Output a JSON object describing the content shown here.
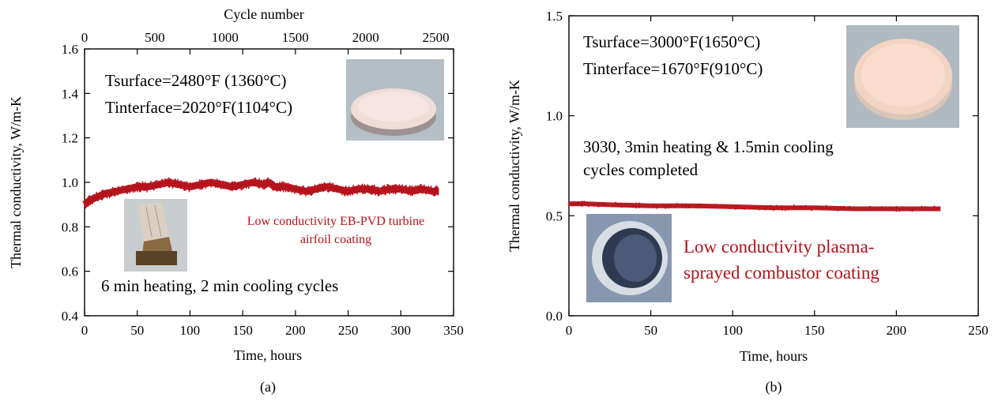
{
  "chart_data": [
    {
      "type": "line",
      "panel_label": "(a)",
      "xlabel": "Time, hours",
      "ylabel": "Thermal conductivity,  W/m-K",
      "xlim": [
        0,
        350
      ],
      "ylim": [
        0.4,
        1.6
      ],
      "x_ticks": [
        "0",
        "50",
        "100",
        "150",
        "200",
        "250",
        "300",
        "350"
      ],
      "y_ticks": [
        "0.4",
        "0.6",
        "0.8",
        "1.0",
        "1.2",
        "1.4",
        "1.6"
      ],
      "top_axis": {
        "label": "Cycle number",
        "ticks": [
          "0",
          "500",
          "1000",
          "1500",
          "2000",
          "2500"
        ],
        "tick_values": [
          0,
          500,
          1000,
          1500,
          2000,
          2500
        ],
        "hours_per_cycle": 0.1333
      },
      "series": [
        {
          "name": "Low conductivity EB-PVD turbine airfoil coating",
          "color": "#b5121b",
          "x": [
            0,
            5,
            10,
            20,
            30,
            40,
            50,
            60,
            70,
            80,
            90,
            100,
            110,
            120,
            130,
            140,
            150,
            160,
            170,
            175,
            180,
            190,
            200,
            210,
            220,
            230,
            240,
            250,
            260,
            270,
            280,
            290,
            300,
            310,
            320,
            330,
            336
          ],
          "y": [
            0.9,
            0.92,
            0.93,
            0.95,
            0.96,
            0.97,
            0.98,
            0.98,
            0.99,
            1.0,
            0.99,
            0.98,
            0.99,
            1.0,
            0.99,
            0.98,
            0.99,
            1.0,
            0.99,
            1.0,
            0.98,
            0.98,
            0.97,
            0.96,
            0.97,
            0.98,
            0.97,
            0.96,
            0.97,
            0.97,
            0.96,
            0.97,
            0.97,
            0.96,
            0.97,
            0.96,
            0.96
          ]
        }
      ],
      "annotations": {
        "tsurface": "Tsurface=2480°F (1360°C)",
        "tinterface": "Tinterface=2020°F(1104°C)",
        "coating_line1": "Low conductivity EB-PVD turbine",
        "coating_line2": "airfoil coating",
        "cycles": "6 min heating, 2 min cooling cycles"
      },
      "images": [
        "coating-disk-photo",
        "turbine-blade-photo"
      ],
      "grid": false
    },
    {
      "type": "line",
      "panel_label": "(b)",
      "xlabel": "Time, hours",
      "ylabel": "Thermal conductivity,  W/m-K",
      "xlim": [
        0,
        250
      ],
      "ylim": [
        0.0,
        1.5
      ],
      "x_ticks": [
        "0",
        "50",
        "100",
        "150",
        "200",
        "250"
      ],
      "y_ticks": [
        "0.0",
        "0.5",
        "1.0",
        "1.5"
      ],
      "series": [
        {
          "name": "Low conductivity plasma-sprayed combustor coating",
          "color": "#b5121b",
          "x": [
            0,
            10,
            25,
            50,
            75,
            100,
            125,
            150,
            175,
            200,
            227
          ],
          "y": [
            0.56,
            0.56,
            0.555,
            0.55,
            0.55,
            0.545,
            0.54,
            0.54,
            0.535,
            0.535,
            0.535
          ]
        }
      ],
      "annotations": {
        "tsurface": "Tsurface=3000°F(1650°C)",
        "tinterface": "Tinterface=1670°F(910°C)",
        "cycles_line1": "3030, 3min heating & 1.5min cooling",
        "cycles_line2": "cycles completed",
        "coating_line1": "Low conductivity plasma-",
        "coating_line2": "sprayed combustor coating"
      },
      "images": [
        "coating-disk-photo",
        "combustor-liner-photo"
      ],
      "grid": false
    }
  ]
}
